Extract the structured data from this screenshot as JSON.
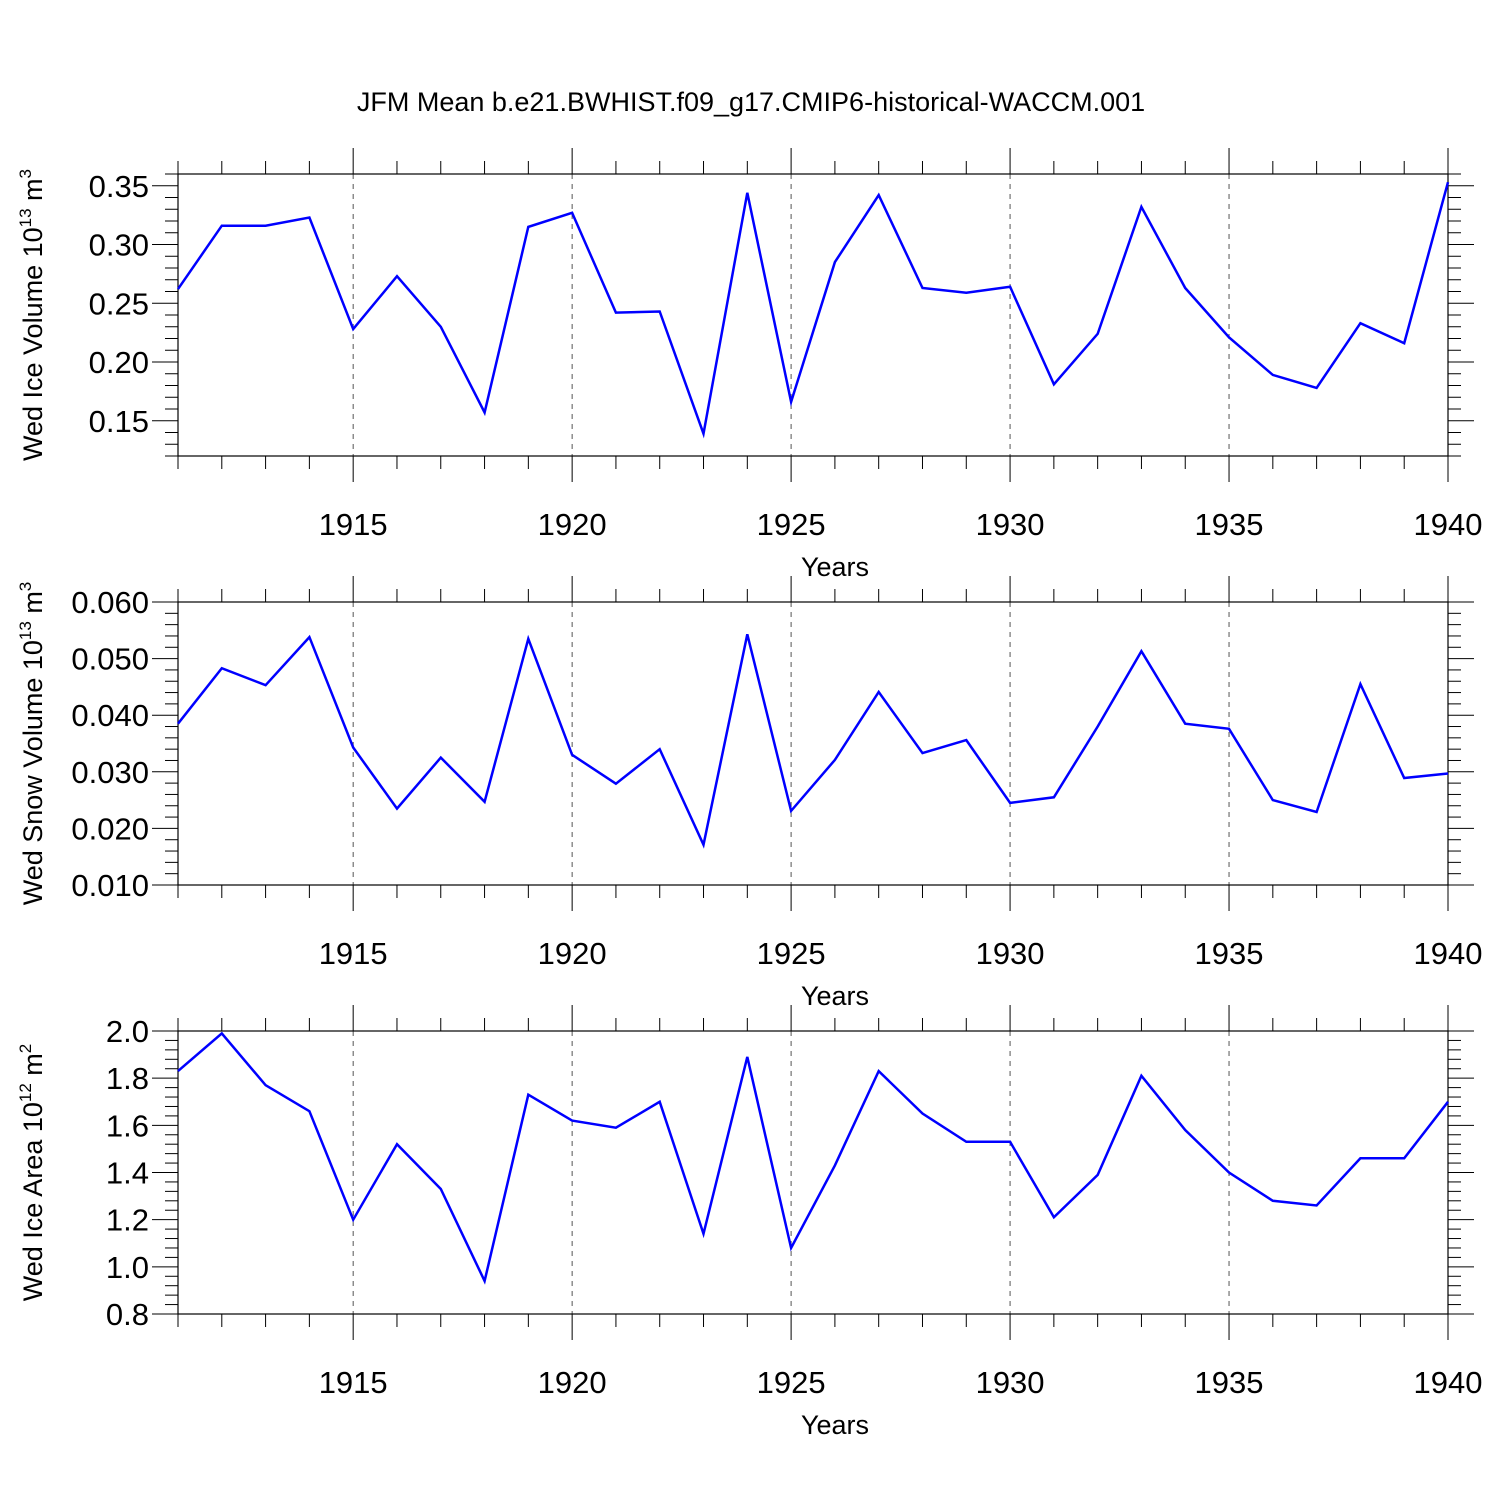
{
  "title": "JFM Mean b.e21.BWHIST.f09_g17.CMIP6-historical-WACCM.001",
  "colors": {
    "line": "#0000ff",
    "axis": "#000000",
    "grid": "#555555"
  },
  "chart_data": [
    {
      "type": "line",
      "ylabel": "Wed Ice Volume",
      "ylabel_unit": {
        "base": "10",
        "exp": "13",
        "unit": "m",
        "unit_exp": "3"
      },
      "xlabel": "Years",
      "xlim": [
        1911,
        1940
      ],
      "ylim": [
        0.12,
        0.36
      ],
      "yticks": [
        0.15,
        0.2,
        0.25,
        0.3,
        0.35
      ],
      "ytick_labels": [
        "0.15",
        "0.20",
        "0.25",
        "0.30",
        "0.35"
      ],
      "xticks": [
        1915,
        1920,
        1925,
        1930,
        1935,
        1940
      ],
      "xtick_labels": [
        "1915",
        "1920",
        "1925",
        "1930",
        "1935",
        "1940"
      ],
      "grid": "vertical dashed at major x ticks",
      "x": [
        1911,
        1912,
        1913,
        1914,
        1915,
        1916,
        1917,
        1918,
        1919,
        1920,
        1921,
        1922,
        1923,
        1924,
        1925,
        1926,
        1927,
        1928,
        1929,
        1930,
        1931,
        1932,
        1933,
        1934,
        1935,
        1936,
        1937,
        1938,
        1939,
        1940
      ],
      "values": [
        0.262,
        0.316,
        0.316,
        0.323,
        0.228,
        0.273,
        0.23,
        0.157,
        0.315,
        0.327,
        0.242,
        0.243,
        0.139,
        0.344,
        0.166,
        0.285,
        0.342,
        0.263,
        0.259,
        0.264,
        0.181,
        0.224,
        0.332,
        0.263,
        0.221,
        0.189,
        0.178,
        0.233,
        0.216,
        0.353
      ]
    },
    {
      "type": "line",
      "ylabel": "Wed Snow Volume",
      "ylabel_unit": {
        "base": "10",
        "exp": "13",
        "unit": "m",
        "unit_exp": "3"
      },
      "xlabel": "Years",
      "xlim": [
        1911,
        1940
      ],
      "ylim": [
        0.01,
        0.06
      ],
      "yticks": [
        0.01,
        0.02,
        0.03,
        0.04,
        0.05,
        0.06
      ],
      "ytick_labels": [
        "0.010",
        "0.020",
        "0.030",
        "0.040",
        "0.050",
        "0.060"
      ],
      "xticks": [
        1915,
        1920,
        1925,
        1930,
        1935,
        1940
      ],
      "xtick_labels": [
        "1915",
        "1920",
        "1925",
        "1930",
        "1935",
        "1940"
      ],
      "grid": "vertical dashed at major x ticks",
      "x": [
        1911,
        1912,
        1913,
        1914,
        1915,
        1916,
        1917,
        1918,
        1919,
        1920,
        1921,
        1922,
        1923,
        1924,
        1925,
        1926,
        1927,
        1928,
        1929,
        1930,
        1931,
        1932,
        1933,
        1934,
        1935,
        1936,
        1937,
        1938,
        1939,
        1940
      ],
      "values": [
        0.0385,
        0.0483,
        0.0453,
        0.0538,
        0.0343,
        0.0235,
        0.0325,
        0.0247,
        0.0535,
        0.033,
        0.0279,
        0.034,
        0.0171,
        0.0543,
        0.0231,
        0.0321,
        0.0441,
        0.0333,
        0.0356,
        0.0245,
        0.0255,
        0.038,
        0.0513,
        0.0385,
        0.0376,
        0.025,
        0.0229,
        0.0455,
        0.0289,
        0.0297
      ]
    },
    {
      "type": "line",
      "ylabel": "Wed Ice Area",
      "ylabel_unit": {
        "base": "10",
        "exp": "12",
        "unit": "m",
        "unit_exp": "2"
      },
      "xlabel": "Years",
      "xlim": [
        1911,
        1940
      ],
      "ylim": [
        0.8,
        2.0
      ],
      "yticks": [
        0.8,
        1.0,
        1.2,
        1.4,
        1.6,
        1.8,
        2.0
      ],
      "ytick_labels": [
        "0.8",
        "1.0",
        "1.2",
        "1.4",
        "1.6",
        "1.8",
        "2.0"
      ],
      "xticks": [
        1915,
        1920,
        1925,
        1930,
        1935,
        1940
      ],
      "xtick_labels": [
        "1915",
        "1920",
        "1925",
        "1930",
        "1935",
        "1940"
      ],
      "grid": "vertical dashed at major x ticks",
      "x": [
        1911,
        1912,
        1913,
        1914,
        1915,
        1916,
        1917,
        1918,
        1919,
        1920,
        1921,
        1922,
        1923,
        1924,
        1925,
        1926,
        1927,
        1928,
        1929,
        1930,
        1931,
        1932,
        1933,
        1934,
        1935,
        1936,
        1937,
        1938,
        1939,
        1940
      ],
      "values": [
        1.83,
        1.99,
        1.77,
        1.66,
        1.2,
        1.52,
        1.33,
        0.94,
        1.73,
        1.62,
        1.59,
        1.7,
        1.14,
        1.89,
        1.08,
        1.43,
        1.83,
        1.65,
        1.53,
        1.53,
        1.21,
        1.39,
        1.81,
        1.58,
        1.4,
        1.28,
        1.26,
        1.46,
        1.46,
        1.7
      ]
    }
  ]
}
